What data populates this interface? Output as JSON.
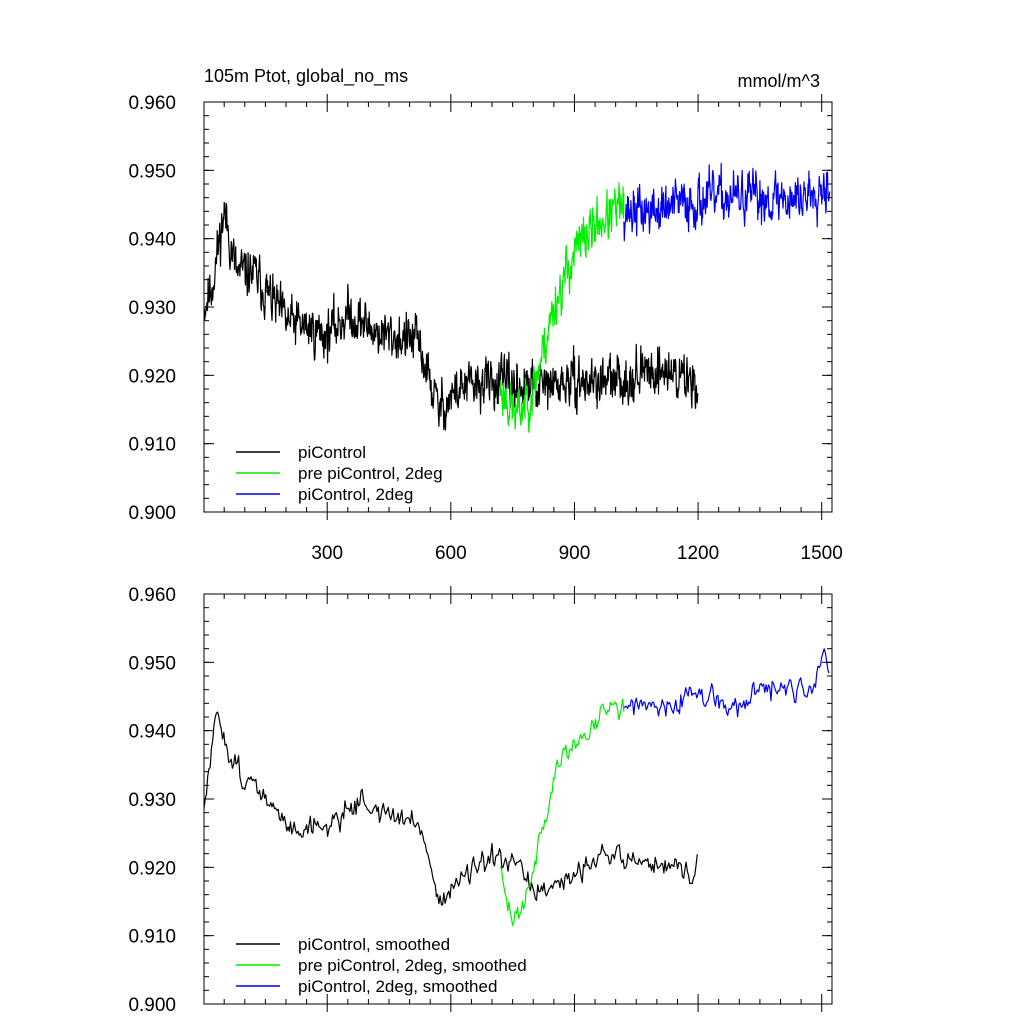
{
  "colors": {
    "piControl": "#000000",
    "pre_piControl_2deg": "#00ee00",
    "piControl_2deg": "#0000ee"
  },
  "chart_data": [
    {
      "type": "line",
      "title": "105m Ptot, global_no_ms",
      "units": "mmol/m^3",
      "xlim": [
        1,
        1525
      ],
      "ylim": [
        0.9,
        0.96
      ],
      "xticks": [
        300,
        600,
        900,
        1200,
        1500
      ],
      "xtick_labels": [
        "300",
        "600",
        "900",
        "1200",
        "1500"
      ],
      "yticks": [
        0.9,
        0.91,
        0.92,
        0.93,
        0.94,
        0.95,
        0.96
      ],
      "ytick_labels": [
        "0.900",
        "0.910",
        "0.920",
        "0.930",
        "0.940",
        "0.950",
        "0.960"
      ],
      "legend_position": "bottom-left",
      "series": [
        {
          "name": "piControl",
          "color": "#000000",
          "x_start": 1,
          "x_end": 1200,
          "x_step": 1,
          "anchors": [
            [
              1,
              0.93
            ],
            [
              20,
              0.933
            ],
            [
              50,
              0.944
            ],
            [
              80,
              0.935
            ],
            [
              120,
              0.935
            ],
            [
              200,
              0.928
            ],
            [
              300,
              0.926
            ],
            [
              350,
              0.929
            ],
            [
              430,
              0.926
            ],
            [
              520,
              0.925
            ],
            [
              570,
              0.915
            ],
            [
              620,
              0.918
            ],
            [
              700,
              0.919
            ],
            [
              800,
              0.918
            ],
            [
              900,
              0.919
            ],
            [
              1000,
              0.919
            ],
            [
              1100,
              0.921
            ],
            [
              1200,
              0.919
            ]
          ],
          "noise": 0.0045,
          "seed": 11
        },
        {
          "name": "pre piControl, 2deg",
          "color": "#00ee00",
          "x_start": 720,
          "x_end": 1020,
          "x_step": 1,
          "anchors": [
            [
              720,
              0.918
            ],
            [
              760,
              0.914
            ],
            [
              800,
              0.918
            ],
            [
              850,
              0.93
            ],
            [
              900,
              0.938
            ],
            [
              950,
              0.942
            ],
            [
              1000,
              0.944
            ],
            [
              1020,
              0.945
            ]
          ],
          "noise": 0.0045,
          "seed": 23
        },
        {
          "name": "piControl, 2deg",
          "color": "#0000ee",
          "x_start": 1020,
          "x_end": 1520,
          "x_step": 1,
          "anchors": [
            [
              1020,
              0.944
            ],
            [
              1100,
              0.944
            ],
            [
              1150,
              0.945
            ],
            [
              1250,
              0.946
            ],
            [
              1350,
              0.946
            ],
            [
              1450,
              0.946
            ],
            [
              1500,
              0.948
            ],
            [
              1520,
              0.948
            ]
          ],
          "noise": 0.0045,
          "seed": 37
        }
      ]
    },
    {
      "type": "line",
      "title": "",
      "units": "",
      "xlim": [
        1,
        1525
      ],
      "ylim": [
        0.9,
        0.96
      ],
      "xticks": [
        300,
        600,
        900,
        1200,
        1500
      ],
      "xtick_labels": [],
      "yticks": [
        0.9,
        0.91,
        0.92,
        0.93,
        0.94,
        0.95,
        0.96
      ],
      "ytick_labels": [
        "0.900",
        "0.910",
        "0.920",
        "0.930",
        "0.940",
        "0.950",
        "0.960"
      ],
      "legend_position": "bottom-left",
      "series": [
        {
          "name": "piControl, smoothed",
          "color": "#000000",
          "x_start": 1,
          "x_end": 1200,
          "x_step": 3,
          "anchors": [
            [
              1,
              0.928
            ],
            [
              15,
              0.935
            ],
            [
              35,
              0.943
            ],
            [
              60,
              0.937
            ],
            [
              100,
              0.933
            ],
            [
              150,
              0.93
            ],
            [
              200,
              0.926
            ],
            [
              300,
              0.926
            ],
            [
              380,
              0.93
            ],
            [
              430,
              0.928
            ],
            [
              530,
              0.926
            ],
            [
              570,
              0.915
            ],
            [
              620,
              0.918
            ],
            [
              700,
              0.921
            ],
            [
              760,
              0.92
            ],
            [
              800,
              0.917
            ],
            [
              850,
              0.916
            ],
            [
              950,
              0.922
            ],
            [
              1050,
              0.921
            ],
            [
              1150,
              0.92
            ],
            [
              1190,
              0.918
            ],
            [
              1200,
              0.923
            ]
          ],
          "noise": 0.0022,
          "seed": 51
        },
        {
          "name": "pre piControl, 2deg, smoothed",
          "color": "#00ee00",
          "x_start": 720,
          "x_end": 1020,
          "x_step": 3,
          "anchors": [
            [
              720,
              0.919
            ],
            [
              750,
              0.912
            ],
            [
              780,
              0.916
            ],
            [
              820,
              0.925
            ],
            [
              860,
              0.935
            ],
            [
              900,
              0.938
            ],
            [
              950,
              0.941
            ],
            [
              990,
              0.945
            ],
            [
              1020,
              0.943
            ]
          ],
          "noise": 0.0022,
          "seed": 63
        },
        {
          "name": "piControl, 2deg, smoothed",
          "color": "#0000ee",
          "x_start": 1020,
          "x_end": 1520,
          "x_step": 3,
          "anchors": [
            [
              1020,
              0.944
            ],
            [
              1100,
              0.943
            ],
            [
              1150,
              0.943
            ],
            [
              1180,
              0.946
            ],
            [
              1250,
              0.944
            ],
            [
              1300,
              0.943
            ],
            [
              1350,
              0.946
            ],
            [
              1450,
              0.946
            ],
            [
              1480,
              0.945
            ],
            [
              1505,
              0.952
            ],
            [
              1520,
              0.948
            ]
          ],
          "noise": 0.0022,
          "seed": 77
        }
      ]
    }
  ]
}
